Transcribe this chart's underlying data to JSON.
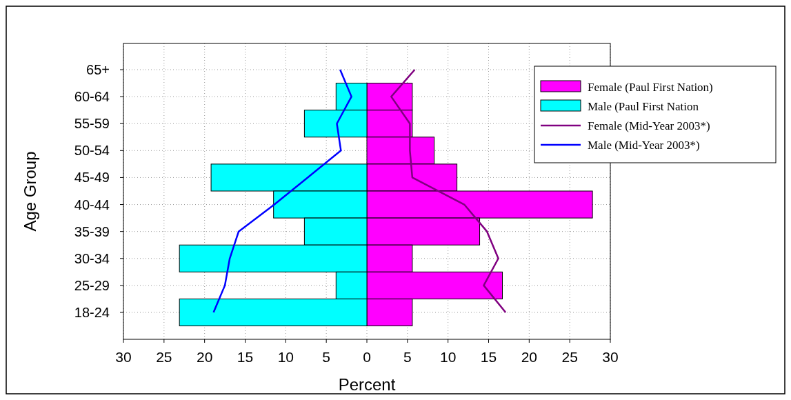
{
  "chart_data": {
    "type": "bar",
    "orientation": "horizontal",
    "ylabel": "Age Group",
    "xlabel": "Percent",
    "categories": [
      "65+",
      "60-64",
      "55-59",
      "50-54",
      "45-49",
      "40-44",
      "35-39",
      "30-34",
      "25-29",
      "18-24"
    ],
    "series": [
      {
        "name": "Female (Paul First Nation)",
        "color": "#ff00ff",
        "values": [
          null,
          5.6,
          5.6,
          8.3,
          11.1,
          27.8,
          13.9,
          5.6,
          16.7,
          5.6
        ]
      },
      {
        "name": "Male (Paul First Nation",
        "color": "#00ffff",
        "values": [
          null,
          -3.8,
          -7.7,
          null,
          -19.2,
          -11.5,
          -7.7,
          -23.1,
          -3.8,
          -23.1
        ]
      },
      {
        "name": "Female (Mid-Year 2003*)",
        "type": "line",
        "color": "#800080",
        "values": [
          5.9,
          3.0,
          5.3,
          5.3,
          5.6,
          12.0,
          14.8,
          16.2,
          14.4,
          17.1
        ]
      },
      {
        "name": "Male (Mid-Year 2003*)",
        "type": "line",
        "color": "#0000ff",
        "values": [
          -3.3,
          -1.9,
          -3.7,
          -3.2,
          -7.3,
          -11.4,
          -15.8,
          -16.9,
          -17.5,
          -18.9
        ]
      }
    ],
    "stacked": true,
    "xlim": [
      -30,
      30
    ],
    "xticks": [
      {
        "value": -30,
        "label": "30"
      },
      {
        "value": -25,
        "label": "25"
      },
      {
        "value": -20,
        "label": "20"
      },
      {
        "value": -15,
        "label": "15"
      },
      {
        "value": -10,
        "label": "10"
      },
      {
        "value": -5,
        "label": "5"
      },
      0,
      5,
      10,
      15,
      20,
      25,
      30
    ],
    "grid": true,
    "legend": "top right",
    "marker": "none",
    "line_style": "solid"
  }
}
